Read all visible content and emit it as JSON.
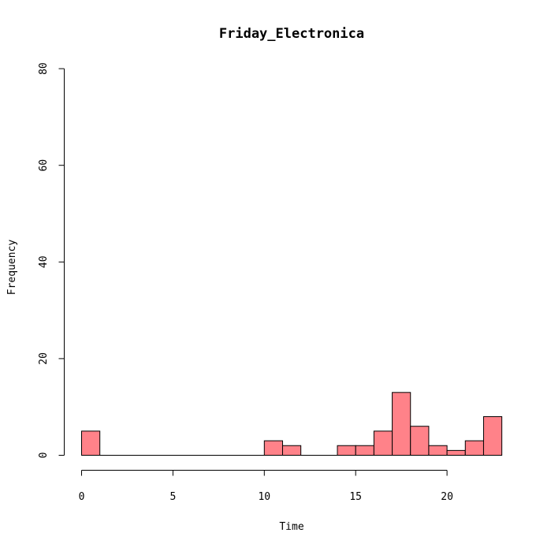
{
  "chart_data": {
    "type": "bar",
    "title": "Friday_Electronica",
    "xlabel": "Time",
    "ylabel": "Frequency",
    "xlim": [
      0,
      23
    ],
    "ylim": [
      0,
      80
    ],
    "x_ticks": [
      0,
      5,
      10,
      15,
      20
    ],
    "y_ticks": [
      0,
      20,
      40,
      60,
      80
    ],
    "bins": [
      {
        "start": 0,
        "end": 1,
        "count": 5
      },
      {
        "start": 1,
        "end": 2,
        "count": 0
      },
      {
        "start": 2,
        "end": 3,
        "count": 0
      },
      {
        "start": 3,
        "end": 4,
        "count": 0
      },
      {
        "start": 4,
        "end": 5,
        "count": 0
      },
      {
        "start": 5,
        "end": 6,
        "count": 0
      },
      {
        "start": 6,
        "end": 7,
        "count": 0
      },
      {
        "start": 7,
        "end": 8,
        "count": 0
      },
      {
        "start": 8,
        "end": 9,
        "count": 0
      },
      {
        "start": 9,
        "end": 10,
        "count": 0
      },
      {
        "start": 10,
        "end": 11,
        "count": 3
      },
      {
        "start": 11,
        "end": 12,
        "count": 2
      },
      {
        "start": 12,
        "end": 13,
        "count": 0
      },
      {
        "start": 13,
        "end": 14,
        "count": 0
      },
      {
        "start": 14,
        "end": 15,
        "count": 2
      },
      {
        "start": 15,
        "end": 16,
        "count": 2
      },
      {
        "start": 16,
        "end": 17,
        "count": 5
      },
      {
        "start": 17,
        "end": 18,
        "count": 13
      },
      {
        "start": 18,
        "end": 19,
        "count": 6
      },
      {
        "start": 19,
        "end": 20,
        "count": 2
      },
      {
        "start": 20,
        "end": 21,
        "count": 1
      },
      {
        "start": 21,
        "end": 22,
        "count": 3
      },
      {
        "start": 22,
        "end": 23,
        "count": 8
      }
    ],
    "bar_color": "#FF8289",
    "grid": false
  }
}
